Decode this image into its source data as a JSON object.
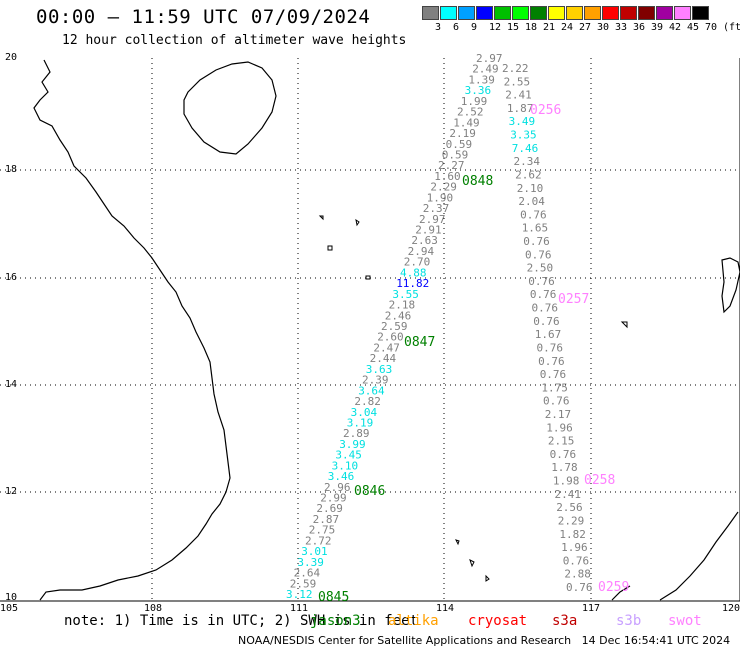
{
  "header": {
    "title": "00:00 – 11:59 UTC 07/09/2024",
    "subtitle": "12 hour collection of altimeter wave heights"
  },
  "colorbar": {
    "labels": [
      "3",
      "6",
      "9",
      "12",
      "15",
      "18",
      "21",
      "24",
      "27",
      "30",
      "33",
      "36",
      "39",
      "42",
      "45",
      "70",
      "(ft)"
    ],
    "colors": [
      "#808080",
      "#00ffff",
      "#00a0ff",
      "#0000ff",
      "#00c000",
      "#00ff00",
      "#008000",
      "#ffff00",
      "#ffd000",
      "#ffa000",
      "#ff0000",
      "#c00000",
      "#800000",
      "#a000a0",
      "#ff80ff",
      "#000000"
    ]
  },
  "axes": {
    "lon_labels": [
      "105",
      "108",
      "111",
      "114",
      "117",
      "120"
    ],
    "lat_labels": [
      "20",
      "18",
      "16",
      "14",
      "12",
      "10"
    ]
  },
  "track_left": {
    "values": [
      "3.12",
      "2.59",
      "2.64",
      "3.39",
      "3.01",
      "2.72",
      "2.75",
      "2.87",
      "2.69",
      "2.99",
      "2.96",
      "3.46",
      "3.10",
      "3.45",
      "3.99",
      "2.89",
      "3.19",
      "3.04",
      "2.82",
      "3.64",
      "2.39",
      "3.63",
      "2.44",
      "2.47",
      "2.60",
      "2.59",
      "2.46",
      "2.18",
      "3.55",
      "11.82",
      "4.88",
      "2.70",
      "2.94",
      "2.63",
      "2.91",
      "2.97",
      "2.37",
      "1.90",
      "2.29",
      "1.60",
      "2.27",
      "0.59",
      "0.59",
      "2.19",
      "1.49",
      "2.52",
      "1.99",
      "3.36",
      "1.39",
      "2.49",
      "2.97"
    ],
    "colors": [
      "#00e0e0",
      "#808080",
      "#808080",
      "#00e0e0",
      "#00e0e0",
      "#808080",
      "#808080",
      "#808080",
      "#808080",
      "#808080",
      "#808080",
      "#00e0e0",
      "#00e0e0",
      "#00e0e0",
      "#00e0e0",
      "#808080",
      "#00e0e0",
      "#00e0e0",
      "#808080",
      "#00e0e0",
      "#808080",
      "#00e0e0",
      "#808080",
      "#808080",
      "#808080",
      "#808080",
      "#808080",
      "#808080",
      "#00e0e0",
      "#0000ff",
      "#00e0e0",
      "#808080",
      "#808080",
      "#808080",
      "#808080",
      "#808080",
      "#808080",
      "#808080",
      "#808080",
      "#808080",
      "#808080",
      "#808080",
      "#808080",
      "#808080",
      "#808080",
      "#808080",
      "#808080",
      "#00e0e0",
      "#808080",
      "#808080",
      "#808080"
    ],
    "time_labels": [
      "0845",
      "0846",
      "0847",
      "0848"
    ],
    "time_color": "#008000"
  },
  "track_right": {
    "values": [
      "0.76",
      "2.88",
      "0.76",
      "1.96",
      "1.82",
      "2.29",
      "2.56",
      "2.41",
      "1.98",
      "1.78",
      "0.76",
      "2.15",
      "1.96",
      "2.17",
      "0.76",
      "1.75",
      "0.76",
      "0.76",
      "0.76",
      "1.67",
      "0.76",
      "0.76",
      "0.76",
      "0.76",
      "2.50",
      "0.76",
      "0.76",
      "1.65",
      "0.76",
      "2.04",
      "2.10",
      "2.62",
      "2.34",
      "7.46",
      "3.35",
      "3.49",
      "1.87",
      "2.41",
      "2.55",
      "2.22"
    ],
    "colors": [
      "#808080",
      "#808080",
      "#808080",
      "#808080",
      "#808080",
      "#808080",
      "#808080",
      "#808080",
      "#808080",
      "#808080",
      "#808080",
      "#808080",
      "#808080",
      "#808080",
      "#808080",
      "#808080",
      "#808080",
      "#808080",
      "#808080",
      "#808080",
      "#808080",
      "#808080",
      "#808080",
      "#808080",
      "#808080",
      "#808080",
      "#808080",
      "#808080",
      "#808080",
      "#808080",
      "#808080",
      "#808080",
      "#808080",
      "#00e0e0",
      "#00e0e0",
      "#00e0e0",
      "#808080",
      "#808080",
      "#808080",
      "#808080"
    ],
    "time_labels": [
      "0259",
      "0258",
      "0257",
      "0256"
    ],
    "time_color": "#ff80ff"
  },
  "note": {
    "text": "note: 1) Time is in UTC; 2) SWH is in feet",
    "satellites": [
      {
        "name": "jason3",
        "color": "#008000"
      },
      {
        "name": "altika",
        "color": "#ffa000"
      },
      {
        "name": "cryosat",
        "color": "#ff0000"
      },
      {
        "name": "s3a",
        "color": "#c00000"
      },
      {
        "name": "s3b",
        "color": "#c8a0ff"
      },
      {
        "name": "swot",
        "color": "#ff80ff"
      }
    ]
  },
  "footer": {
    "credit": "NOAA/NESDIS Center for Satellite Applications and Research",
    "timestamp": "14 Dec 16:54:41 UTC 2024"
  }
}
